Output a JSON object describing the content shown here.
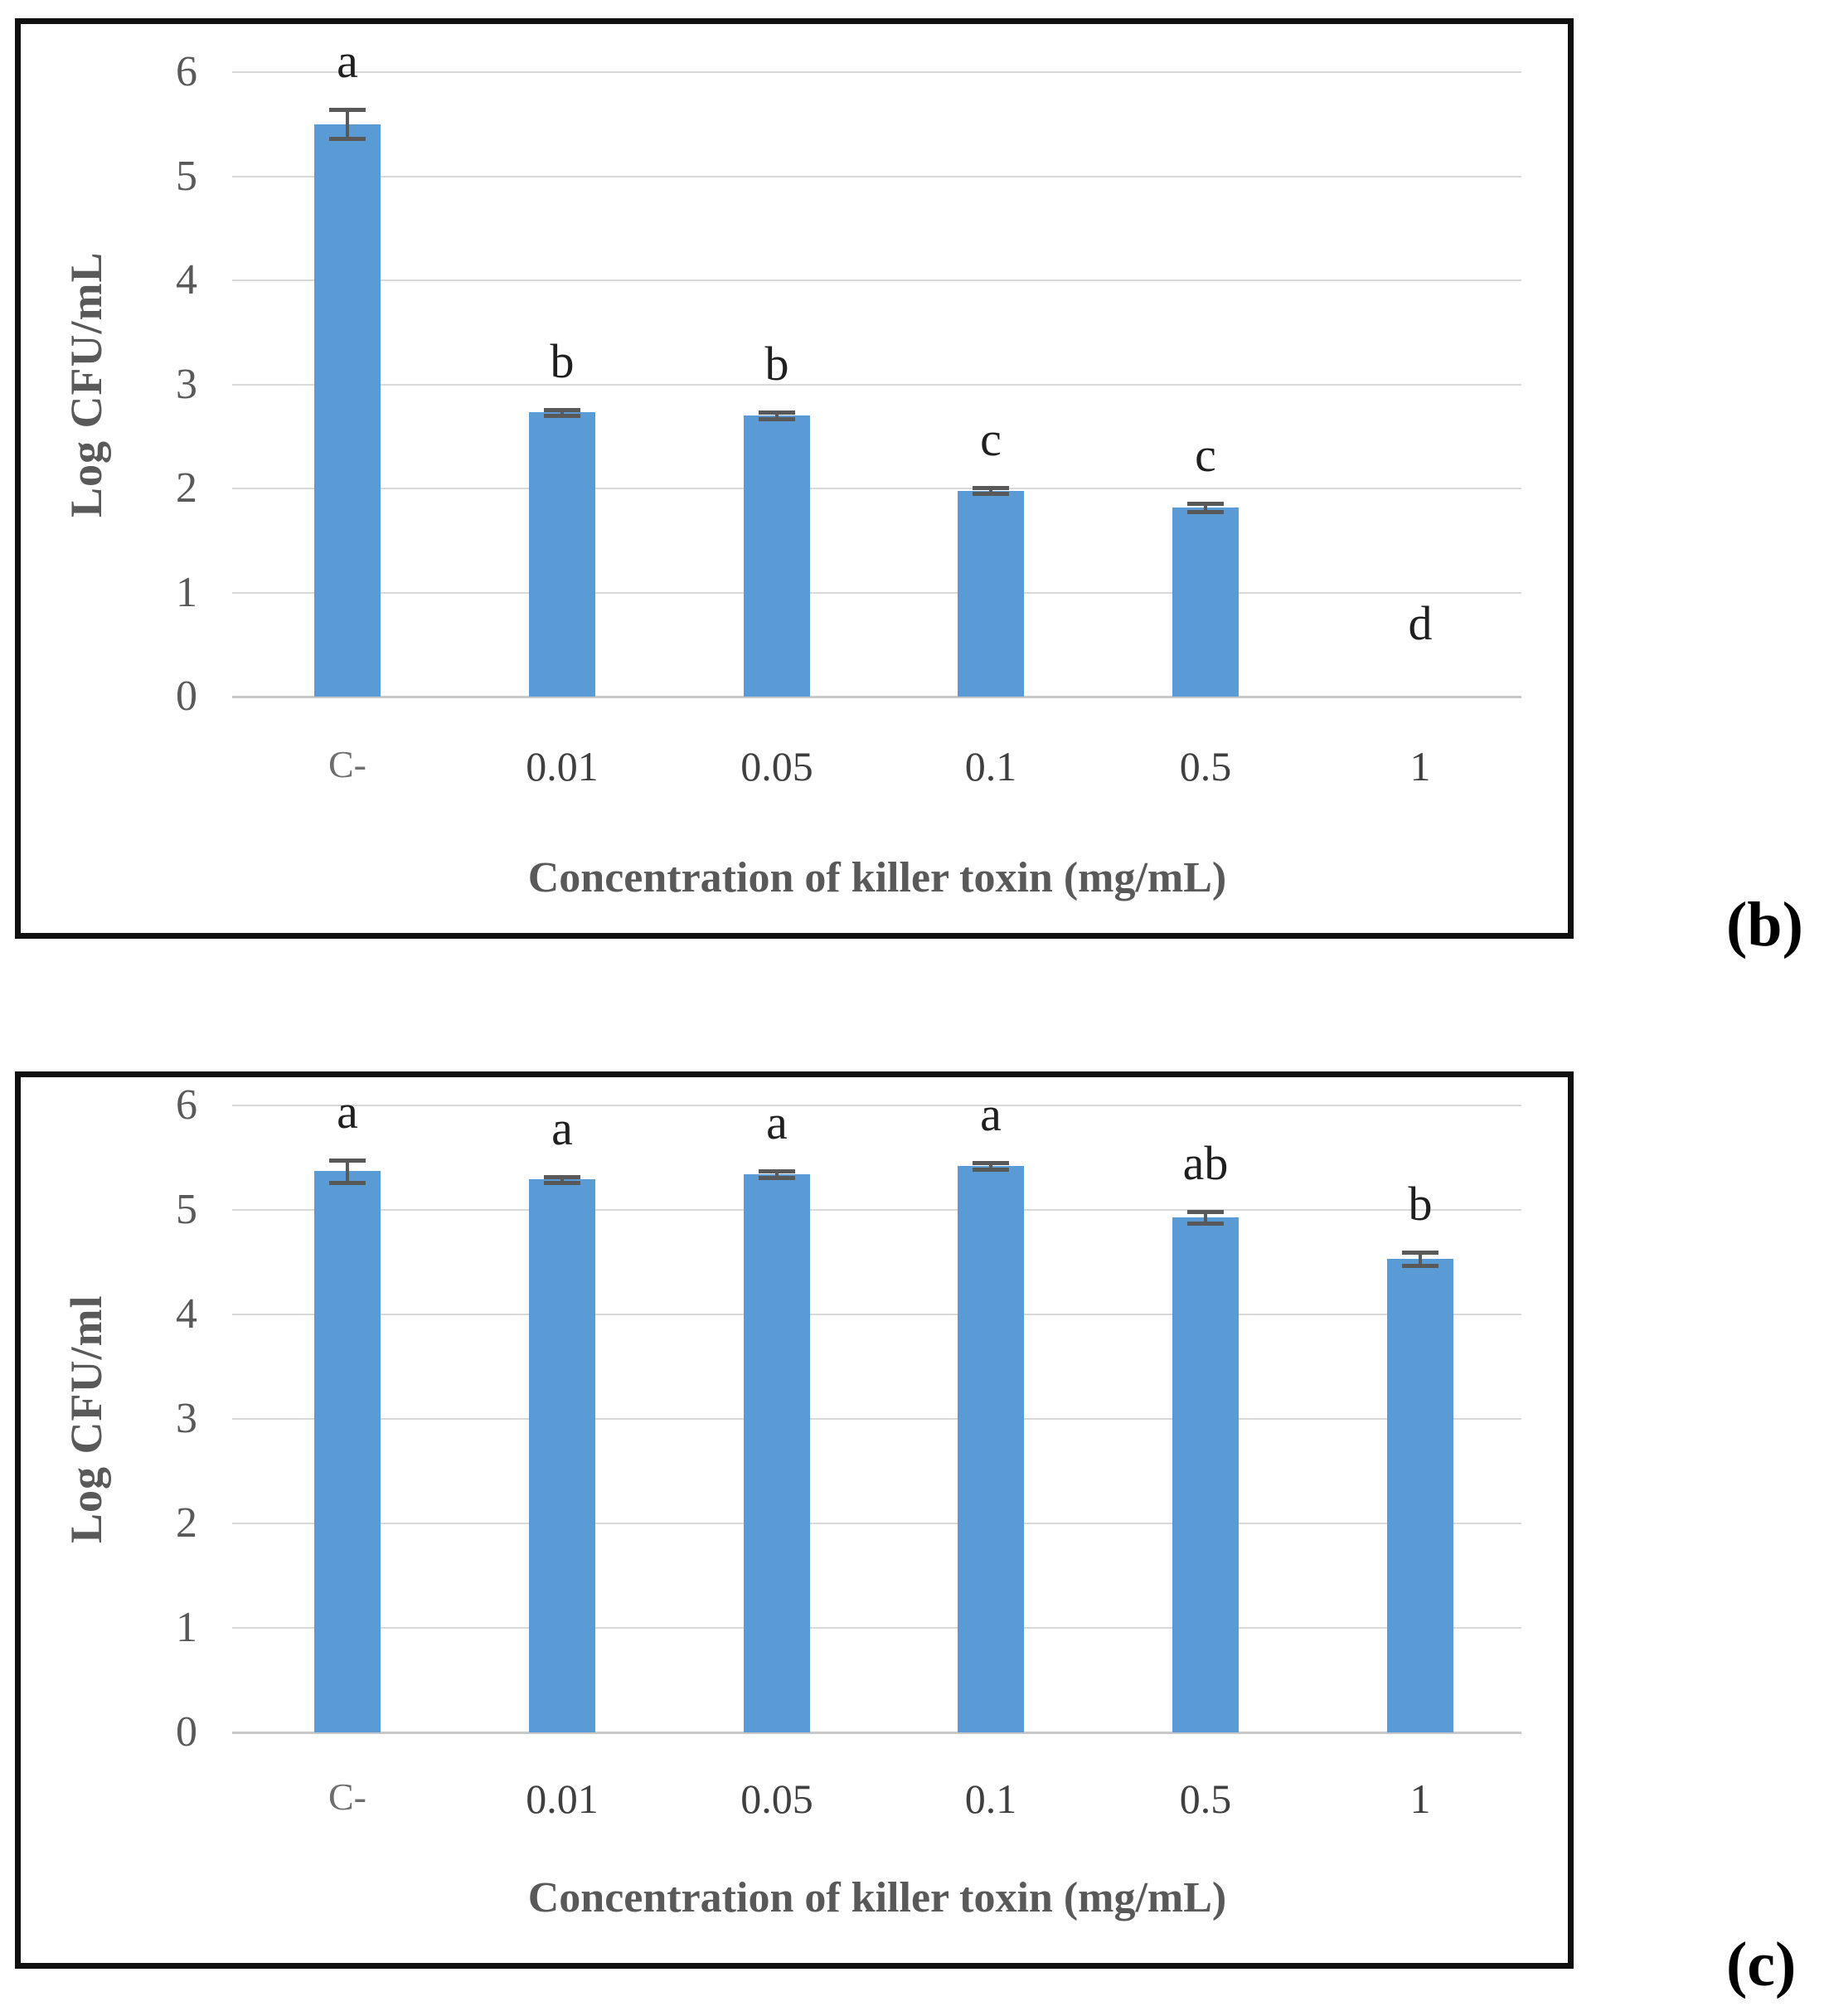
{
  "colors": {
    "bar_fill": "#5b9bd5",
    "error_bar": "#595959",
    "gridline": "#d9d9d9",
    "axis_text": "#595959",
    "letter_text": "#1f1f1f",
    "frame": "#101010",
    "background": "#ffffff"
  },
  "chart_data": [
    {
      "type": "bar",
      "panel_label": "(b)",
      "title": "",
      "xlabel": "Concentration of killer toxin (mg/mL)",
      "ylabel": "Log CFU/mL",
      "ylim": [
        0,
        6
      ],
      "y_ticks": [
        0,
        1,
        2,
        3,
        4,
        5,
        6
      ],
      "grid": "horizontal",
      "legend": "none",
      "categories": [
        "C-",
        "0.01",
        "0.05",
        "0.1",
        "0.5",
        "1"
      ],
      "values": [
        5.5,
        2.73,
        2.7,
        1.98,
        1.82,
        0
      ],
      "errors": [
        0.14,
        0.03,
        0.03,
        0.03,
        0.04,
        0
      ],
      "significance_letters": [
        "a",
        "b",
        "b",
        "c",
        "c",
        "d"
      ]
    },
    {
      "type": "bar",
      "panel_label": "(c)",
      "title": "",
      "xlabel": "Concentration of killer toxin (mg/mL)",
      "ylabel": "Log CFU/ml",
      "ylim": [
        0,
        6
      ],
      "y_ticks": [
        0,
        1,
        2,
        3,
        4,
        5,
        6
      ],
      "grid": "horizontal",
      "legend": "none",
      "categories": [
        "C-",
        "0.01",
        "0.05",
        "0.1",
        "0.5",
        "1"
      ],
      "values": [
        5.37,
        5.29,
        5.34,
        5.42,
        4.93,
        4.53
      ],
      "errors": [
        0.11,
        0.03,
        0.03,
        0.03,
        0.055,
        0.065
      ],
      "significance_letters": [
        "a",
        "a",
        "a",
        "a",
        "ab",
        "b"
      ]
    }
  ]
}
